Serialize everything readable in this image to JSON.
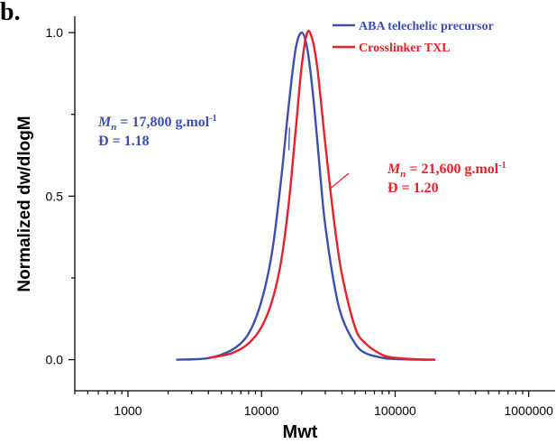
{
  "panel_label": "b.",
  "chart_data": {
    "type": "line",
    "xscale": "log",
    "xlabel": "Mwt",
    "ylabel": "Normalized dw/dlogM",
    "xlim": [
      400,
      1600000
    ],
    "ylim": [
      -0.095,
      1.05
    ],
    "x_ticks": [
      1000,
      10000,
      100000,
      1000000
    ],
    "x_tick_labels": [
      "1000",
      "10000",
      "100000",
      "1000000"
    ],
    "y_ticks": [
      0.0,
      0.5,
      1.0
    ],
    "y_tick_labels": [
      "0.0",
      "0.5",
      "1.0"
    ],
    "grid": false,
    "legend_position": "top-right",
    "series": [
      {
        "name": "ABA telechelic precursor",
        "color": "#3a4fb0",
        "x": [
          2300,
          4000,
          6000,
          8000,
          10000,
          12000,
          14000,
          16000,
          18000,
          20000,
          22000,
          24000,
          26000,
          28000,
          30000,
          35000,
          40000,
          50000,
          60000,
          80000,
          100000,
          150000,
          200000
        ],
        "y": [
          0.0,
          0.005,
          0.03,
          0.08,
          0.18,
          0.33,
          0.55,
          0.78,
          0.95,
          1.0,
          0.95,
          0.83,
          0.68,
          0.53,
          0.41,
          0.23,
          0.13,
          0.05,
          0.02,
          0.006,
          0.002,
          0.0,
          0.0
        ]
      },
      {
        "name": "Crosslinker TXL",
        "color": "#e8202a",
        "x": [
          4000,
          6000,
          8000,
          10000,
          12000,
          14000,
          16000,
          18000,
          20000,
          22000,
          24000,
          26000,
          28000,
          30000,
          35000,
          40000,
          50000,
          60000,
          80000,
          100000,
          150000,
          200000
        ],
        "y": [
          0.005,
          0.02,
          0.05,
          0.1,
          0.18,
          0.3,
          0.48,
          0.7,
          0.9,
          1.0,
          0.98,
          0.9,
          0.78,
          0.66,
          0.42,
          0.26,
          0.1,
          0.05,
          0.015,
          0.006,
          0.001,
          0.0
        ]
      }
    ]
  },
  "annotations": [
    {
      "color": "#3a4fb0",
      "mn_symbol": "M",
      "mn_sub": "n",
      "mn_value": " = 17,800 g.mol",
      "mn_sup": "-1",
      "dispersity": "Đ = 1.18",
      "pointer_from": {
        "x": 16200,
        "y": 0.71
      },
      "pointer_to": {
        "x": 16000,
        "y": 0.64
      }
    },
    {
      "color": "#e8202a",
      "mn_symbol": "M",
      "mn_sub": "n",
      "mn_value": " = 21,600 g.mol",
      "mn_sup": "-1",
      "dispersity": "Đ = 1.20",
      "pointer_from": {
        "x": 45000,
        "y": 0.57
      },
      "pointer_to": {
        "x": 32000,
        "y": 0.52
      }
    }
  ]
}
